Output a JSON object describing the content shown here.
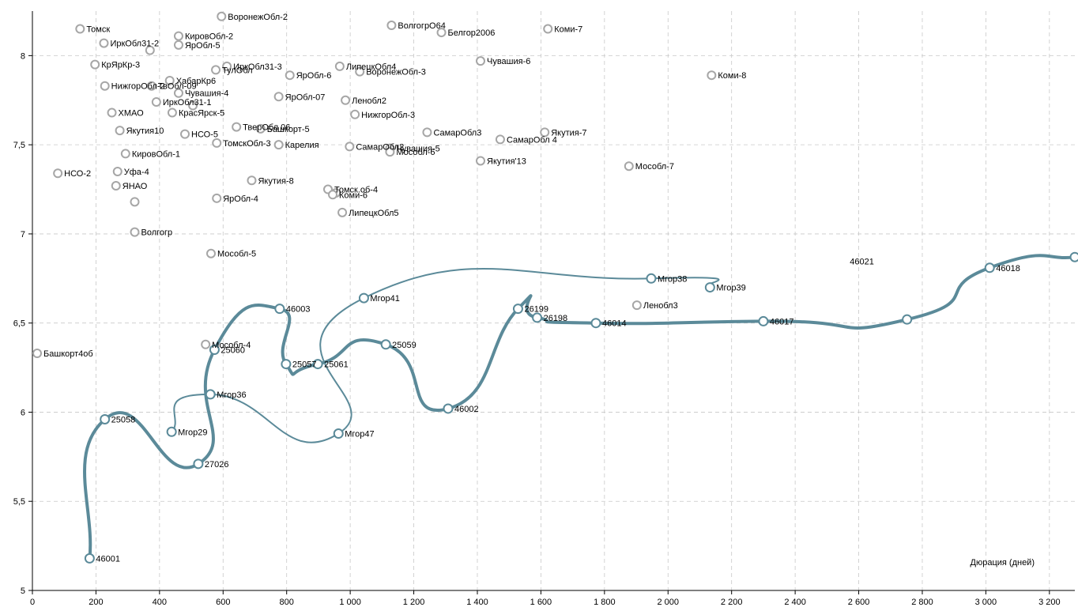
{
  "chart_data": {
    "type": "scatter",
    "title": "",
    "xlabel": "Дюрация (дней)",
    "ylabel": "",
    "xlim": [
      0,
      3280
    ],
    "ylim": [
      5,
      8.25
    ],
    "x_ticks": [
      0,
      200,
      400,
      600,
      800,
      1000,
      1200,
      1400,
      1600,
      1800,
      2000,
      2200,
      2400,
      2600,
      2800,
      3000,
      3200
    ],
    "y_ticks": [
      5,
      5.5,
      6,
      6.5,
      7,
      7.5,
      8
    ],
    "x_tick_labels": [
      "0",
      "200",
      "400",
      "600",
      "800",
      "1 000",
      "1 200",
      "1 400",
      "1 600",
      "1 800",
      "2 000",
      "2 200",
      "2 400",
      "2 600",
      "2 800",
      "3 000",
      "3 200"
    ],
    "y_tick_labels": [
      "5",
      "5,5",
      "6",
      "6,5",
      "7",
      "7,5",
      "8"
    ],
    "grid": true,
    "colors": {
      "curve": "#5b8a99",
      "other_points": "#a6a6a6",
      "grid": "#c8c8c8",
      "axis": "#000000"
    },
    "series": [
      {
        "name": "",
        "style": "curve-thick",
        "points": [
          {
            "label": "46001",
            "x": 180,
            "y": 5.18
          },
          {
            "label": "25058",
            "x": 228,
            "y": 5.96
          },
          {
            "label": "27026",
            "x": 522,
            "y": 5.71
          },
          {
            "label": "25060",
            "x": 573,
            "y": 6.35
          },
          {
            "label": "46003",
            "x": 778,
            "y": 6.58
          },
          {
            "label": "25057",
            "x": 798,
            "y": 6.27
          },
          {
            "label": "25061",
            "x": 898,
            "y": 6.27
          },
          {
            "label": "25059",
            "x": 1112,
            "y": 6.38
          },
          {
            "label": "46002",
            "x": 1308,
            "y": 6.02
          },
          {
            "label": "26199",
            "x": 1528,
            "y": 6.58
          },
          {
            "label": "26198",
            "x": 1588,
            "y": 6.53
          },
          {
            "label": "46014",
            "x": 1773,
            "y": 6.5
          },
          {
            "label": "46017",
            "x": 2300,
            "y": 6.51
          },
          {
            "label": "",
            "x": 2752,
            "y": 6.52
          },
          {
            "label": "46018",
            "x": 3012,
            "y": 6.81
          },
          {
            "label": "",
            "x": 3280,
            "y": 6.87
          }
        ]
      },
      {
        "name": "",
        "style": "curve-thin",
        "points": [
          {
            "label": "Мгор29",
            "x": 438,
            "y": 5.89
          },
          {
            "label": "Мгор36",
            "x": 560,
            "y": 6.1
          },
          {
            "label": "Мгор47",
            "x": 963,
            "y": 5.88
          },
          {
            "label": "Мгор41",
            "x": 1043,
            "y": 6.64
          },
          {
            "label": "Мгор38",
            "x": 1947,
            "y": 6.75
          },
          {
            "label": "Мгор39",
            "x": 2132,
            "y": 6.7
          }
        ]
      },
      {
        "name": "",
        "style": "points",
        "points": [
          {
            "label": "Томск",
            "x": 150,
            "y": 8.15
          },
          {
            "label": "ВоронежОбл-2",
            "x": 595,
            "y": 8.22
          },
          {
            "label": "ВолгогрО64",
            "x": 1130,
            "y": 8.17
          },
          {
            "label": "Белгор2006",
            "x": 1287,
            "y": 8.13
          },
          {
            "label": "Коми-7",
            "x": 1622,
            "y": 8.15
          },
          {
            "label": "ИркОбл31-2",
            "x": 225,
            "y": 8.07
          },
          {
            "label": "КировОбл-2",
            "x": 460,
            "y": 8.11
          },
          {
            "label": "ЯрОбл-5",
            "x": 460,
            "y": 8.06
          },
          {
            "label": "",
            "x": 370,
            "y": 8.03
          },
          {
            "label": "Чувашия-6",
            "x": 1410,
            "y": 7.97
          },
          {
            "label": "КрЯрКр-3",
            "x": 197,
            "y": 7.95
          },
          {
            "label": "ИркОбл31-3",
            "x": 612,
            "y": 7.94
          },
          {
            "label": "ТулОбл",
            "x": 577,
            "y": 7.92
          },
          {
            "label": "ЛипецкОбл4",
            "x": 967,
            "y": 7.94
          },
          {
            "label": "ВоронежОбл-3",
            "x": 1030,
            "y": 7.91
          },
          {
            "label": "Коми-8",
            "x": 2137,
            "y": 7.89
          },
          {
            "label": "НижгорОбл-2",
            "x": 228,
            "y": 7.83
          },
          {
            "label": "ТвОбл-09",
            "x": 375,
            "y": 7.83
          },
          {
            "label": "ХабарКр6",
            "x": 432,
            "y": 7.86
          },
          {
            "label": "ЯрОбл-6",
            "x": 810,
            "y": 7.89
          },
          {
            "label": "Чувашия-4",
            "x": 460,
            "y": 7.79
          },
          {
            "label": "ЯрОбл-07",
            "x": 775,
            "y": 7.77
          },
          {
            "label": "Ленобл2",
            "x": 985,
            "y": 7.75
          },
          {
            "label": "ИркОбл31-1",
            "x": 390,
            "y": 7.74
          },
          {
            "label": "",
            "x": 505,
            "y": 7.72
          },
          {
            "label": "КрасЯрск-5",
            "x": 440,
            "y": 7.68
          },
          {
            "label": "ХМАО",
            "x": 250,
            "y": 7.68
          },
          {
            "label": "НижгорОбл-3",
            "x": 1015,
            "y": 7.67
          },
          {
            "label": "ТверОбл 06",
            "x": 642,
            "y": 7.6
          },
          {
            "label": "Башкорт-5",
            "x": 718,
            "y": 7.59
          },
          {
            "label": "Якутия10",
            "x": 275,
            "y": 7.58
          },
          {
            "label": "НСО-5",
            "x": 480,
            "y": 7.56
          },
          {
            "label": "Якутия-7",
            "x": 1612,
            "y": 7.57
          },
          {
            "label": "СамарОбл3",
            "x": 1242,
            "y": 7.57
          },
          {
            "label": "СамарОбл 4",
            "x": 1472,
            "y": 7.53
          },
          {
            "label": "ТомскОбл-3",
            "x": 580,
            "y": 7.51
          },
          {
            "label": "Карелия",
            "x": 775,
            "y": 7.5
          },
          {
            "label": "СамарОбл2",
            "x": 998,
            "y": 7.49
          },
          {
            "label": "Чувашия-5",
            "x": 1125,
            "y": 7.48
          },
          {
            "label": "КировОбл-1",
            "x": 293,
            "y": 7.45
          },
          {
            "label": "Мособл-6",
            "x": 1125,
            "y": 7.46
          },
          {
            "label": "Якутия'13",
            "x": 1410,
            "y": 7.41
          },
          {
            "label": "Мособл-7",
            "x": 1877,
            "y": 7.38
          },
          {
            "label": "Уфа-4",
            "x": 268,
            "y": 7.35
          },
          {
            "label": "НСО-2",
            "x": 80,
            "y": 7.34
          },
          {
            "label": "Якутия-8",
            "x": 690,
            "y": 7.3
          },
          {
            "label": "Томск.об-4",
            "x": 930,
            "y": 7.25
          },
          {
            "label": "ЯНАО",
            "x": 263,
            "y": 7.27
          },
          {
            "label": "",
            "x": 955,
            "y": 7.23
          },
          {
            "label": "ЯрОбл-4",
            "x": 580,
            "y": 7.2
          },
          {
            "label": "Коми-6",
            "x": 945,
            "y": 7.22
          },
          {
            "label": "",
            "x": 322,
            "y": 7.18
          },
          {
            "label": "ЛипецкОбл5",
            "x": 975,
            "y": 7.12
          },
          {
            "label": "Волгогр",
            "x": 322,
            "y": 7.01
          },
          {
            "label": "Мособл-5",
            "x": 562,
            "y": 6.89
          },
          {
            "label": "Ленобл3",
            "x": 1902,
            "y": 6.6
          },
          {
            "label": "Мособл-4",
            "x": 545,
            "y": 6.38
          },
          {
            "label": "Башкорт4об",
            "x": 15,
            "y": 6.33
          }
        ]
      }
    ],
    "annotations": [
      {
        "text": "46021",
        "x": 2610,
        "y": 6.83
      }
    ]
  }
}
